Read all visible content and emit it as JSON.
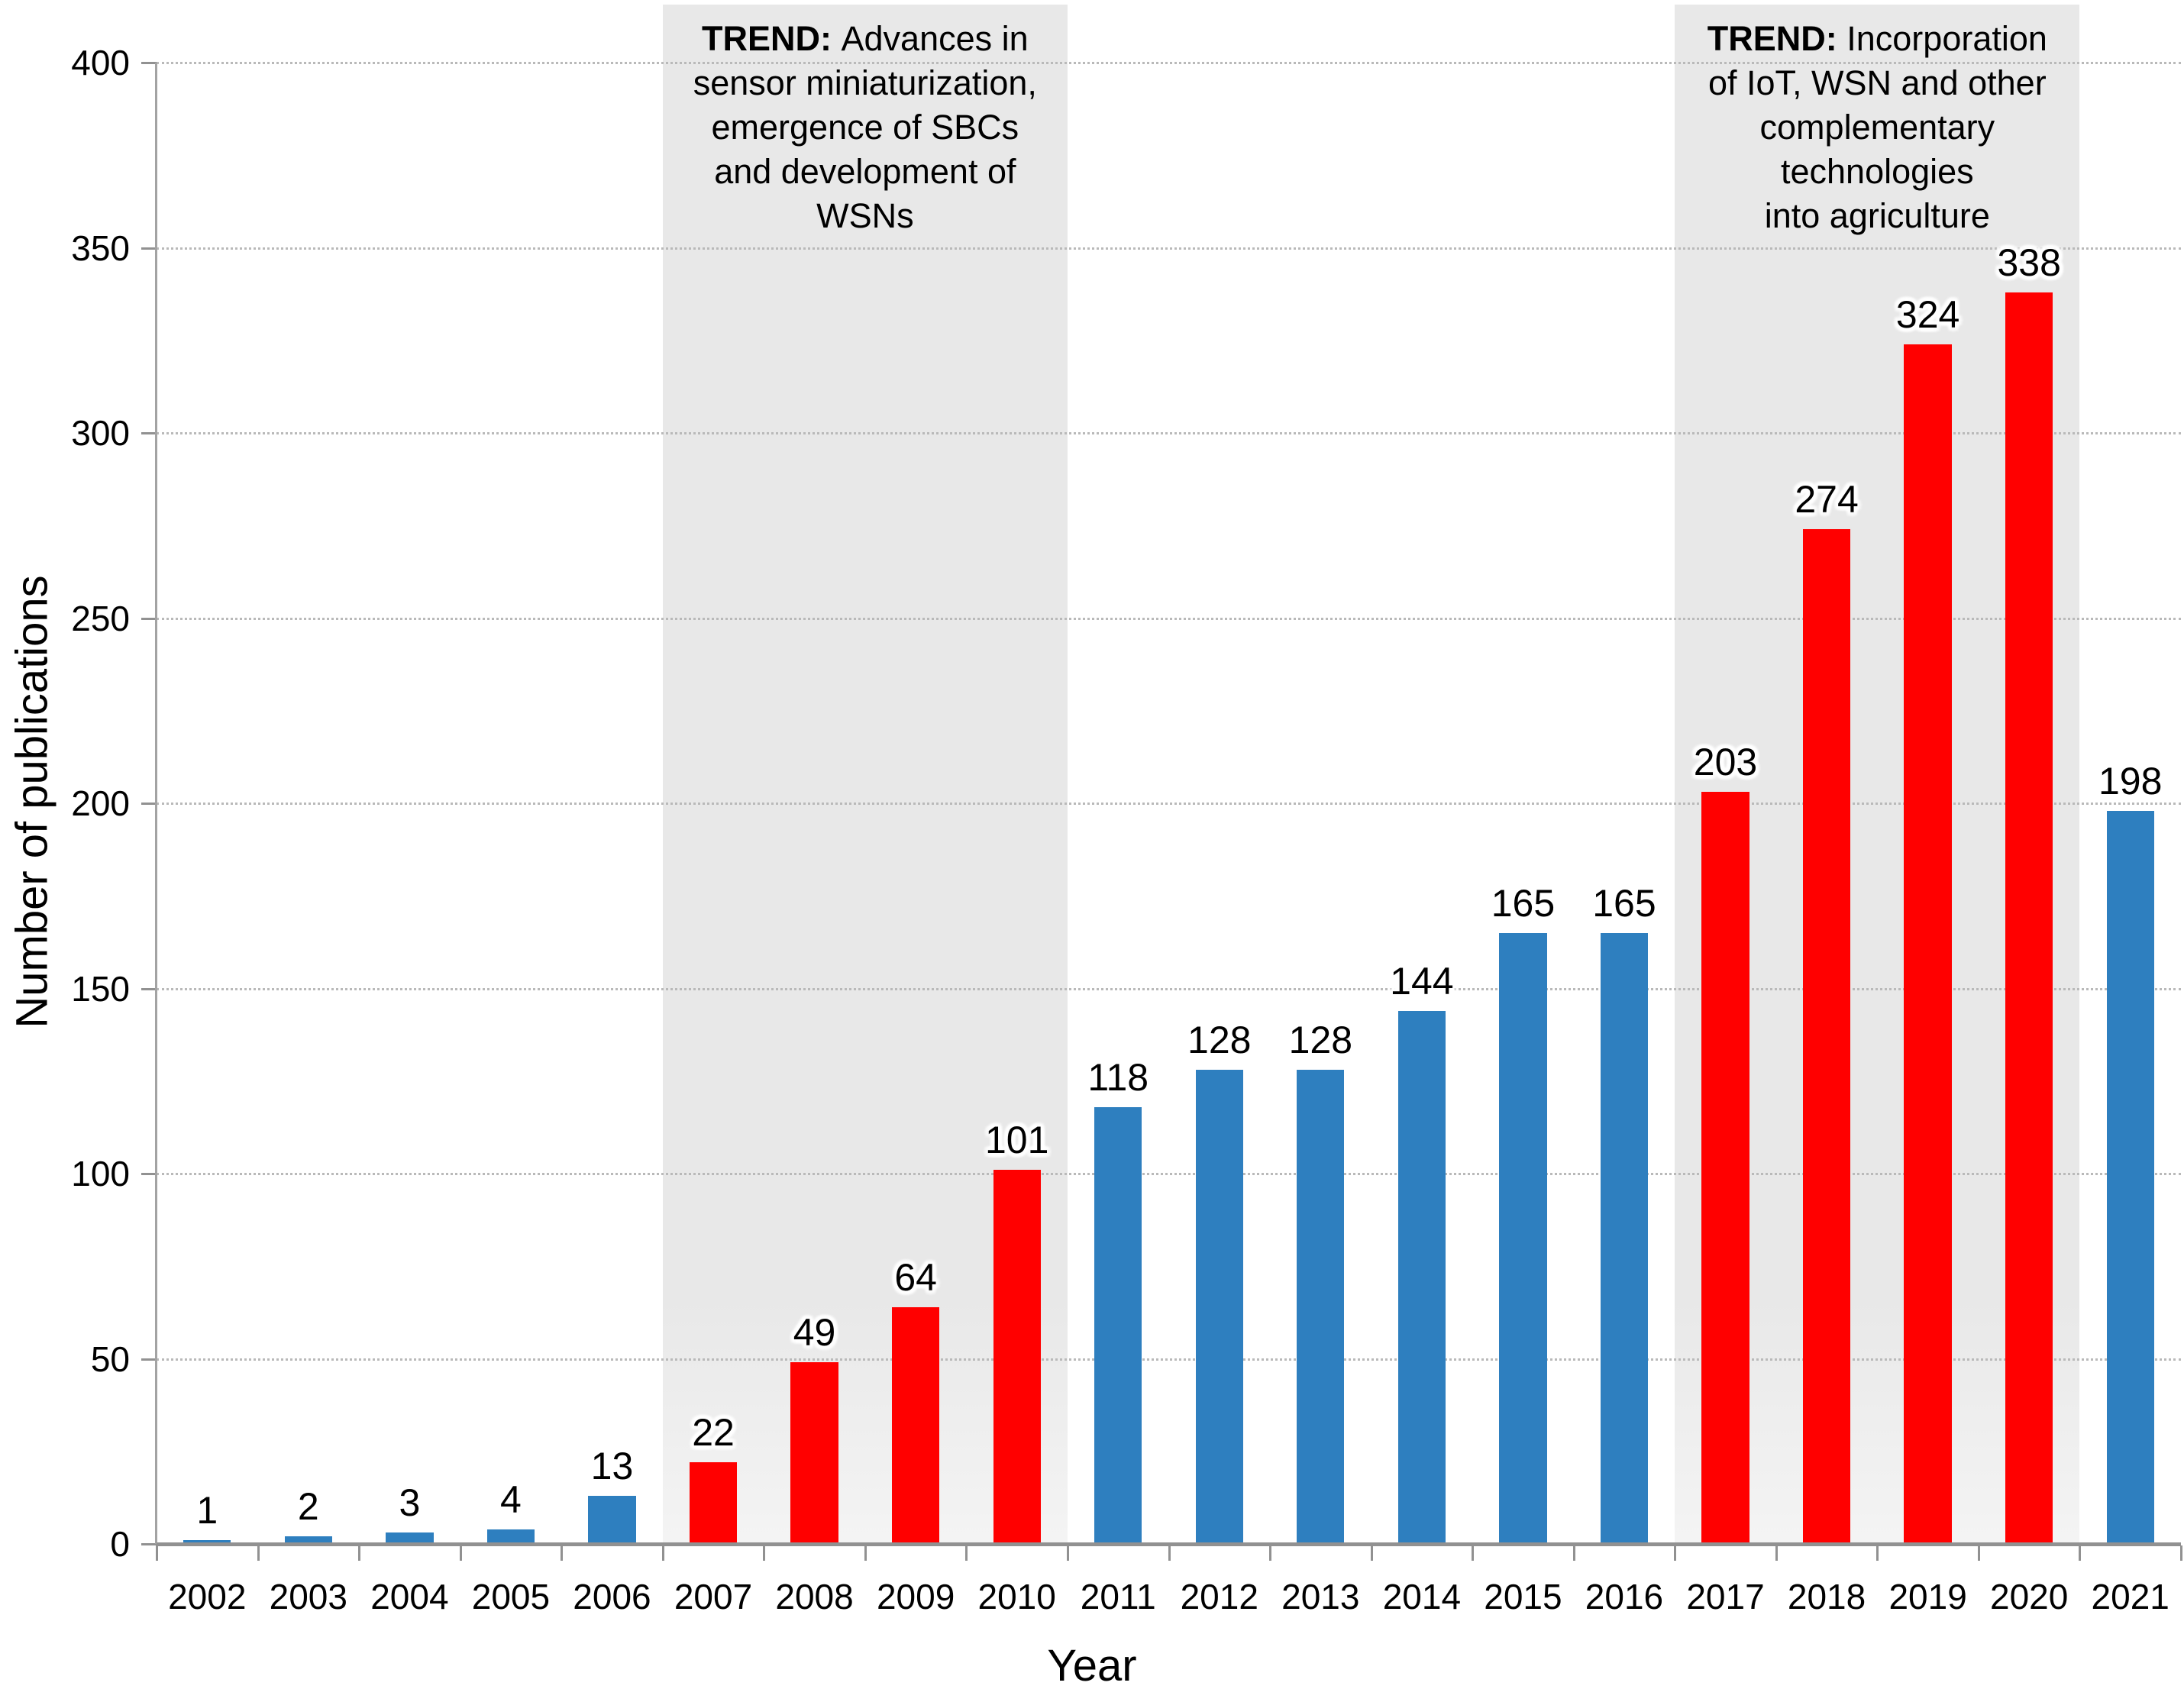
{
  "chart_data": {
    "type": "bar",
    "title": "",
    "xlabel": "Year",
    "ylabel": "Number of publications",
    "ylim": [
      0,
      400
    ],
    "ytick_step": 50,
    "y_ticks": [
      0,
      50,
      100,
      150,
      200,
      250,
      300,
      350,
      400
    ],
    "grid": "horizontal-dotted",
    "legend": "none",
    "categories": [
      "2002",
      "2003",
      "2004",
      "2005",
      "2006",
      "2007",
      "2008",
      "2009",
      "2010",
      "2011",
      "2012",
      "2013",
      "2014",
      "2015",
      "2016",
      "2017",
      "2018",
      "2019",
      "2020",
      "2021"
    ],
    "values": [
      1,
      2,
      3,
      4,
      13,
      22,
      49,
      64,
      101,
      118,
      128,
      128,
      144,
      165,
      165,
      203,
      274,
      324,
      338,
      198
    ],
    "value_labels_shown": true,
    "colors": {
      "default_bar": "#2E7FBF",
      "highlight_bar": "#FF0000",
      "band_background": "#E8E8E8",
      "gridline": "#B9B9B9",
      "axis": "#919191",
      "text": "#000000"
    },
    "highlight_years": [
      "2007",
      "2008",
      "2009",
      "2010",
      "2017",
      "2018",
      "2019",
      "2020"
    ],
    "annotations": [
      {
        "prefix": "TREND:",
        "lines": [
          "Advances in",
          "sensor miniaturization,",
          "emergence of SBCs",
          "and development of",
          "WSNs"
        ],
        "from_year": "2007",
        "to_year": "2010"
      },
      {
        "prefix": "TREND:",
        "lines": [
          "Incorporation",
          "of IoT, WSN and other",
          "complementary",
          "technologies",
          "into agriculture"
        ],
        "from_year": "2017",
        "to_year": "2020"
      }
    ]
  }
}
